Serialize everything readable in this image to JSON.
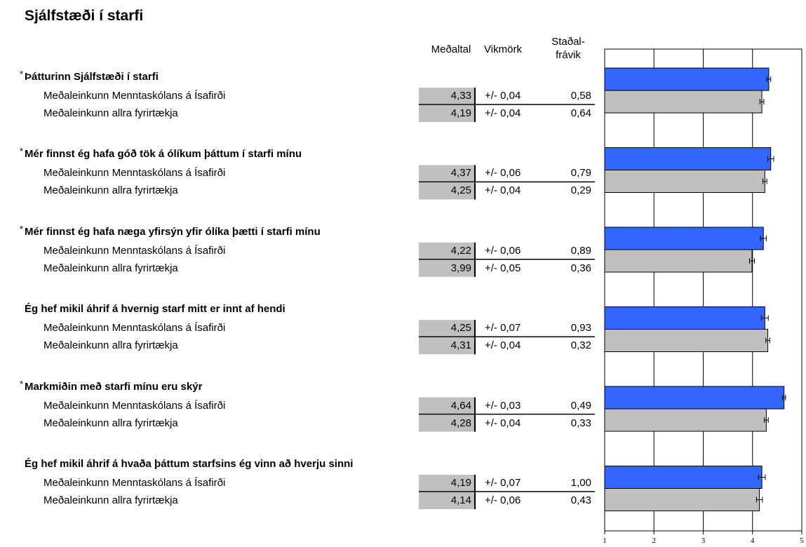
{
  "title": "Sjálfstæði í starfi",
  "columns": [
    "Meðaltal",
    "Vikmörk",
    "Staðal-\nfrávik"
  ],
  "chart_data": {
    "type": "bar",
    "orientation": "horizontal",
    "xlim": [
      1,
      5
    ],
    "xticks": [
      1,
      2,
      3,
      4,
      5
    ],
    "grid": true,
    "categories": [
      "Þátturinn Sjálfstæði í starfi",
      "Mér finnst ég hafa góð tök á ólíkum þáttum í starfi mínu",
      "Mér finnst ég hafa næga yfirsýn yfir ólíka þætti í starfi mínu",
      "Ég hef mikil áhrif á hvernig starf mitt er innt af hendi",
      "Markmiðin með starfi mínu eru skýr",
      "Ég hef mikil áhrif á hvaða þáttum starfsins ég vinn að hverju sinni"
    ],
    "markers": [
      "*",
      "*",
      "*",
      null,
      "*",
      null
    ],
    "series": [
      {
        "name": "Meðaleinkunn Menntaskólans á Ísafirði",
        "color": "#3366ff",
        "values": [
          4.33,
          4.37,
          4.22,
          4.25,
          4.64,
          4.19
        ],
        "value_labels": [
          "4,33",
          "4,37",
          "4,22",
          "4,25",
          "4,64",
          "4,19"
        ],
        "errors": [
          0.04,
          0.06,
          0.06,
          0.07,
          0.03,
          0.07
        ],
        "error_labels": [
          "+/- 0,04",
          "+/- 0,06",
          "+/- 0,06",
          "+/- 0,07",
          "+/- 0,03",
          "+/- 0,07"
        ],
        "sd_labels": [
          "0,58",
          "0,79",
          "0,89",
          "0,93",
          "0,49",
          "1,00"
        ]
      },
      {
        "name": "Meðaleinkunn allra fyrirtækja",
        "color": "#c0c0c0",
        "values": [
          4.19,
          4.25,
          3.99,
          4.31,
          4.28,
          4.14
        ],
        "value_labels": [
          "4,19",
          "4,25",
          "3,99",
          "4,31",
          "4,28",
          "4,14"
        ],
        "errors": [
          0.04,
          0.04,
          0.05,
          0.04,
          0.04,
          0.06
        ],
        "error_labels": [
          "+/- 0,04",
          "+/- 0,04",
          "+/- 0,05",
          "+/- 0,04",
          "+/- 0,04",
          "+/- 0,06"
        ],
        "sd_labels": [
          "0,64",
          "0,29",
          "0,36",
          "0,32",
          "0,33",
          "0,43"
        ]
      }
    ]
  }
}
